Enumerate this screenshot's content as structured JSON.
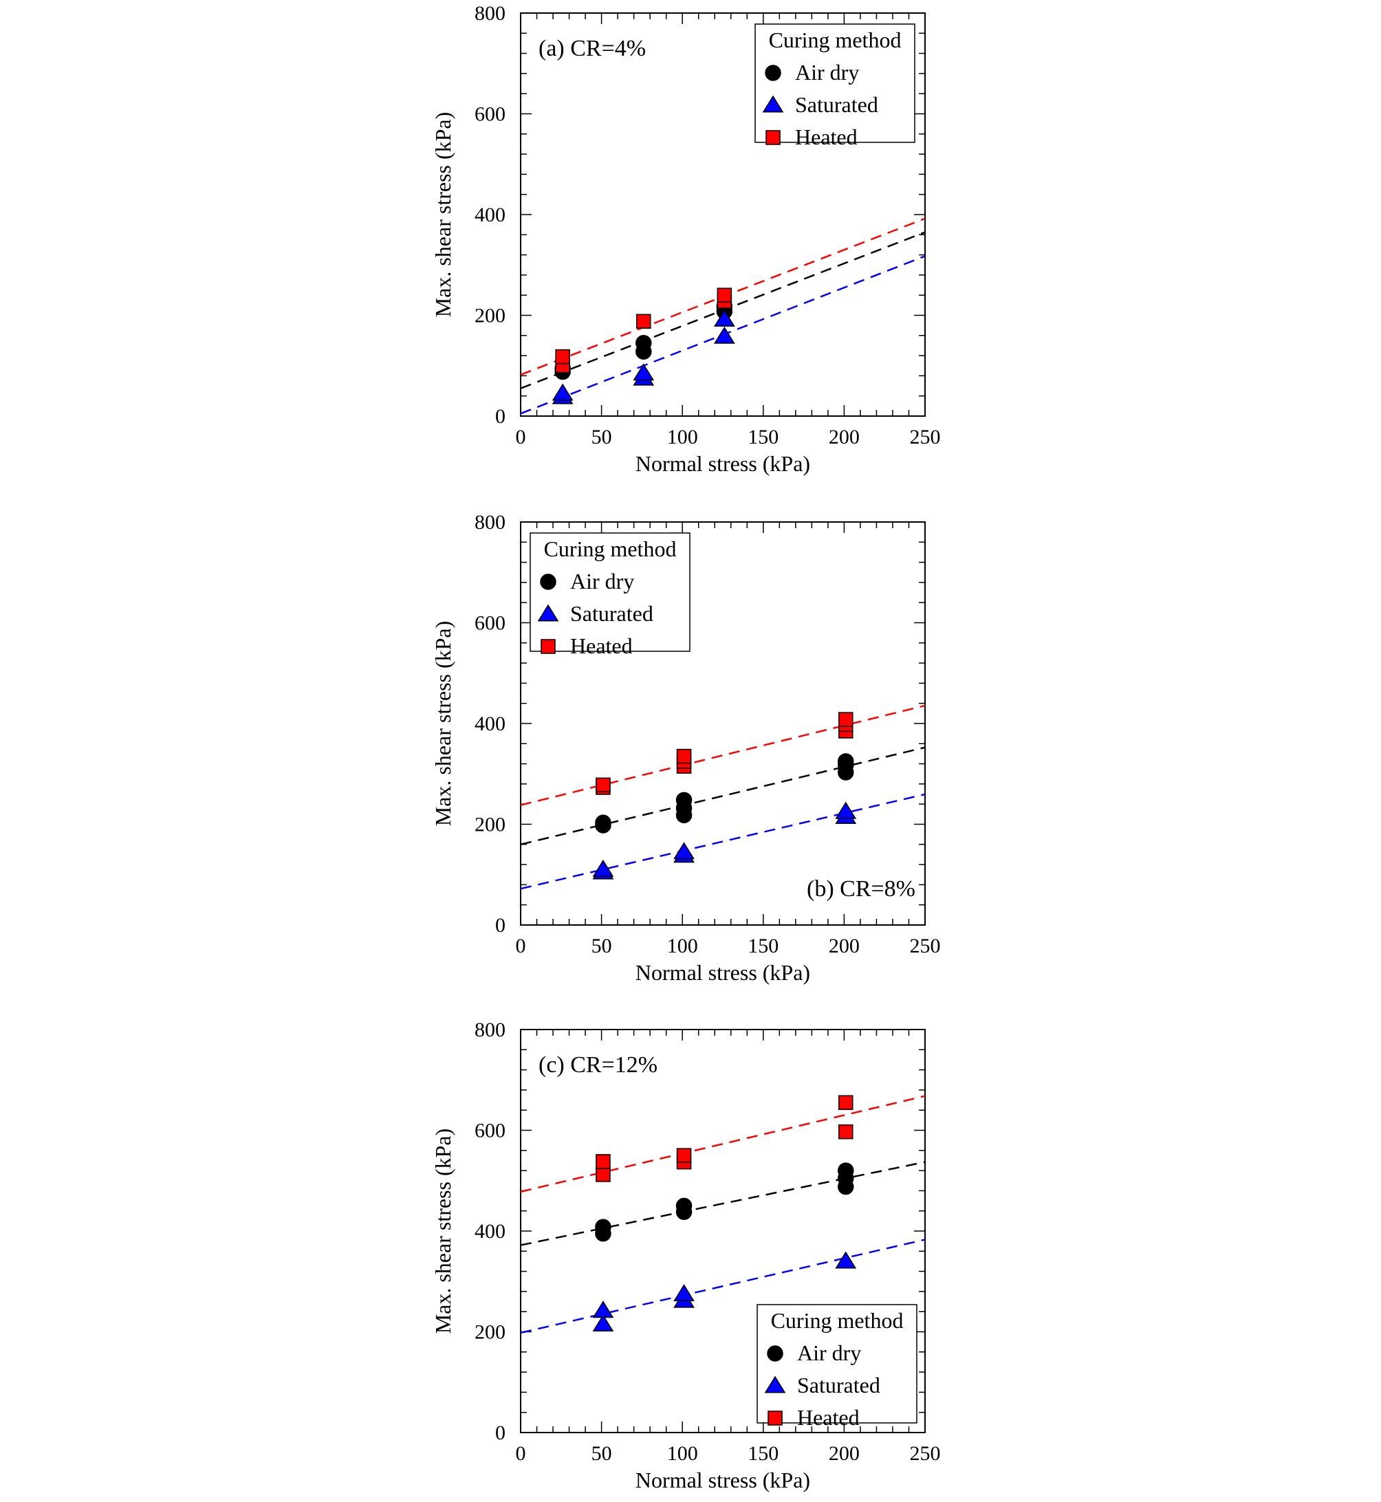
{
  "figure": {
    "marker_colors": {
      "air_dry": "#000000",
      "saturated": "#0000ff",
      "heated": "#ff0000"
    },
    "line_colors": {
      "air_dry": "#000000",
      "saturated": "#0000ff",
      "heated": "#ff0000"
    },
    "icons": {
      "air_dry": "circle-marker-icon",
      "saturated": "triangle-marker-icon",
      "heated": "square-marker-icon"
    }
  },
  "chart_data": [
    {
      "type": "scatter",
      "panel_label": "(a) CR=4%",
      "xlabel": "Normal stress (kPa)",
      "ylabel": "Max. shear stress (kPa)",
      "xlim": [
        0,
        250
      ],
      "ylim": [
        0,
        800
      ],
      "xticks": [
        "0",
        "50",
        "100",
        "150",
        "200",
        "250"
      ],
      "yticks": [
        "0",
        "200",
        "400",
        "600",
        "800"
      ],
      "legend": {
        "title": "Curing method",
        "position": "top-right",
        "entries": [
          "Air dry",
          "Saturated",
          "Heated"
        ]
      },
      "panel_label_position": "top-left",
      "series": [
        {
          "name": "Air dry",
          "key": "air_dry",
          "marker": "circle",
          "points": [
            [
              26,
              88
            ],
            [
              26,
              95
            ],
            [
              76,
              128
            ],
            [
              76,
              145
            ],
            [
              126,
              208
            ],
            [
              126,
              218
            ]
          ],
          "fit": {
            "intercept": 55,
            "slope": 1.24
          }
        },
        {
          "name": "Saturated",
          "key": "saturated",
          "marker": "triangle",
          "points": [
            [
              26,
              38
            ],
            [
              26,
              45
            ],
            [
              76,
              75
            ],
            [
              76,
              85
            ],
            [
              126,
              158
            ],
            [
              126,
              192
            ]
          ],
          "fit": {
            "intercept": 5,
            "slope": 1.25
          }
        },
        {
          "name": "Heated",
          "key": "heated",
          "marker": "square",
          "points": [
            [
              26,
              100
            ],
            [
              26,
              118
            ],
            [
              76,
              188
            ],
            [
              126,
              228
            ],
            [
              126,
              240
            ]
          ],
          "fit": {
            "intercept": 82,
            "slope": 1.24
          }
        }
      ]
    },
    {
      "type": "scatter",
      "panel_label": "(b) CR=8%",
      "xlabel": "Normal stress (kPa)",
      "ylabel": "Max. shear stress (kPa)",
      "xlim": [
        0,
        250
      ],
      "ylim": [
        0,
        800
      ],
      "xticks": [
        "0",
        "50",
        "100",
        "150",
        "200",
        "250"
      ],
      "yticks": [
        "0",
        "200",
        "400",
        "600",
        "800"
      ],
      "legend": {
        "title": "Curing method",
        "position": "top-left",
        "entries": [
          "Air dry",
          "Saturated",
          "Heated"
        ]
      },
      "panel_label_position": "bottom-right",
      "series": [
        {
          "name": "Air dry",
          "key": "air_dry",
          "marker": "circle",
          "points": [
            [
              51,
              198
            ],
            [
              51,
              203
            ],
            [
              101,
              218
            ],
            [
              101,
              232
            ],
            [
              101,
              248
            ],
            [
              201,
              303
            ],
            [
              201,
              318
            ],
            [
              201,
              325
            ]
          ],
          "fit": {
            "intercept": 160,
            "slope": 0.77
          }
        },
        {
          "name": "Saturated",
          "key": "saturated",
          "marker": "triangle",
          "points": [
            [
              51,
              105
            ],
            [
              51,
              110
            ],
            [
              101,
              138
            ],
            [
              101,
              145
            ],
            [
              201,
              215
            ],
            [
              201,
              225
            ]
          ],
          "fit": {
            "intercept": 72,
            "slope": 0.75
          }
        },
        {
          "name": "Heated",
          "key": "heated",
          "marker": "square",
          "points": [
            [
              51,
              273
            ],
            [
              51,
              278
            ],
            [
              101,
              315
            ],
            [
              101,
              325
            ],
            [
              101,
              335
            ],
            [
              201,
              385
            ],
            [
              201,
              398
            ],
            [
              201,
              408
            ]
          ],
          "fit": {
            "intercept": 238,
            "slope": 0.79
          }
        }
      ]
    },
    {
      "type": "scatter",
      "panel_label": "(c) CR=12%",
      "xlabel": "Normal stress (kPa)",
      "ylabel": "Max. shear stress (kPa)",
      "xlim": [
        0,
        250
      ],
      "ylim": [
        0,
        800
      ],
      "xticks": [
        "0",
        "50",
        "100",
        "150",
        "200",
        "250"
      ],
      "yticks": [
        "0",
        "200",
        "400",
        "600",
        "800"
      ],
      "legend": {
        "title": "Curing method",
        "position": "bottom-right",
        "entries": [
          "Air dry",
          "Saturated",
          "Heated"
        ]
      },
      "panel_label_position": "top-left",
      "series": [
        {
          "name": "Air dry",
          "key": "air_dry",
          "marker": "circle",
          "points": [
            [
              51,
              395
            ],
            [
              51,
              408
            ],
            [
              101,
              438
            ],
            [
              101,
              450
            ],
            [
              201,
              488
            ],
            [
              201,
              505
            ],
            [
              201,
              520
            ]
          ],
          "fit": {
            "intercept": 372,
            "slope": 0.66
          }
        },
        {
          "name": "Saturated",
          "key": "saturated",
          "marker": "triangle",
          "points": [
            [
              51,
              215
            ],
            [
              51,
              242
            ],
            [
              101,
              262
            ],
            [
              101,
              275
            ],
            [
              201,
              340
            ]
          ],
          "fit": {
            "intercept": 198,
            "slope": 0.74
          }
        },
        {
          "name": "Heated",
          "key": "heated",
          "marker": "square",
          "points": [
            [
              51,
              512
            ],
            [
              51,
              538
            ],
            [
              101,
              537
            ],
            [
              101,
              550
            ],
            [
              201,
              597
            ],
            [
              201,
              655
            ]
          ],
          "fit": {
            "intercept": 478,
            "slope": 0.76
          }
        }
      ]
    }
  ]
}
